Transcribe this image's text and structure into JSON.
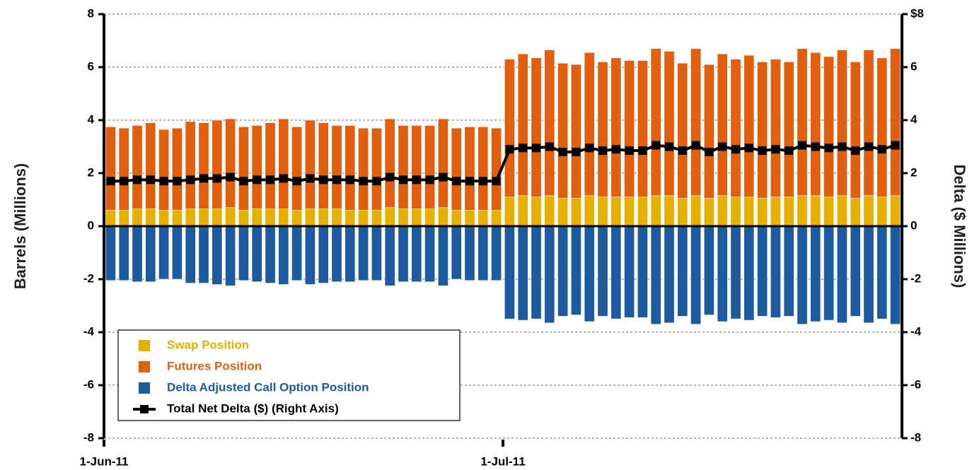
{
  "chart_data": {
    "type": "bar",
    "stacked": true,
    "y_label": "Barrels (Millions)",
    "y2_label": "Delta ($ Millions)",
    "categories": [
      "1-Jun-11",
      null,
      null,
      null,
      null,
      null,
      null,
      null,
      null,
      null,
      null,
      null,
      null,
      null,
      null,
      null,
      null,
      null,
      null,
      null,
      null,
      null,
      null,
      null,
      null,
      null,
      null,
      null,
      null,
      null,
      "1-Jul-11",
      null,
      null,
      null,
      null,
      null,
      null,
      null,
      null,
      null,
      null,
      null,
      null,
      null,
      null,
      null,
      null,
      null,
      null,
      null,
      null,
      null,
      null,
      null,
      null,
      null,
      null,
      null,
      null,
      null
    ],
    "ylim": [
      -8,
      8
    ],
    "yticks": [
      -8,
      -6,
      -4,
      -2,
      0,
      2,
      4,
      6,
      8
    ],
    "y2lim": [
      -8,
      8
    ],
    "y2ticks": [
      -8,
      -6,
      -4,
      -2,
      0,
      2,
      4,
      6,
      {
        "value": 8,
        "label": "$8"
      }
    ],
    "series": [
      {
        "name": "Swap Position",
        "type": "bar",
        "color": "#e6b000",
        "values": [
          0.6,
          0.6,
          0.65,
          0.65,
          0.6,
          0.6,
          0.65,
          0.65,
          0.65,
          0.7,
          0.6,
          0.65,
          0.65,
          0.65,
          0.6,
          0.65,
          0.65,
          0.65,
          0.6,
          0.6,
          0.6,
          0.7,
          0.65,
          0.65,
          0.65,
          0.7,
          0.6,
          0.6,
          0.6,
          0.6,
          1.1,
          1.15,
          1.1,
          1.15,
          1.05,
          1.05,
          1.15,
          1.1,
          1.1,
          1.1,
          1.1,
          1.15,
          1.15,
          1.05,
          1.15,
          1.05,
          1.15,
          1.1,
          1.1,
          1.05,
          1.1,
          1.1,
          1.15,
          1.15,
          1.1,
          1.15,
          1.05,
          1.15,
          1.1,
          1.15
        ]
      },
      {
        "name": "Futures Position",
        "type": "bar",
        "color": "#e0600f",
        "values": [
          3.15,
          3.1,
          3.15,
          3.25,
          3.05,
          3.1,
          3.3,
          3.25,
          3.35,
          3.35,
          3.15,
          3.15,
          3.25,
          3.4,
          3.15,
          3.35,
          3.25,
          3.15,
          3.2,
          3.1,
          3.1,
          3.35,
          3.15,
          3.15,
          3.15,
          3.35,
          3.1,
          3.15,
          3.15,
          3.1,
          5.2,
          5.35,
          5.25,
          5.5,
          5.1,
          5.05,
          5.4,
          5.1,
          5.25,
          5.15,
          5.15,
          5.55,
          5.45,
          5.1,
          5.55,
          5.05,
          5.35,
          5.2,
          5.35,
          5.15,
          5.2,
          5.1,
          5.55,
          5.4,
          5.3,
          5.5,
          5.15,
          5.5,
          5.25,
          5.55
        ]
      },
      {
        "name": "Delta Adjusted Call Option Position",
        "type": "bar",
        "color": "#1d5aa0",
        "values": [
          -2.05,
          -2.05,
          -2.1,
          -2.1,
          -2.0,
          -2.0,
          -2.15,
          -2.15,
          -2.2,
          -2.25,
          -2.05,
          -2.1,
          -2.15,
          -2.2,
          -2.05,
          -2.2,
          -2.15,
          -2.1,
          -2.1,
          -2.05,
          -2.05,
          -2.25,
          -2.1,
          -2.1,
          -2.1,
          -2.25,
          -2.0,
          -2.05,
          -2.05,
          -2.05,
          -3.5,
          -3.55,
          -3.5,
          -3.65,
          -3.4,
          -3.35,
          -3.6,
          -3.4,
          -3.5,
          -3.45,
          -3.45,
          -3.7,
          -3.65,
          -3.4,
          -3.7,
          -3.35,
          -3.6,
          -3.5,
          -3.55,
          -3.4,
          -3.45,
          -3.4,
          -3.7,
          -3.6,
          -3.55,
          -3.65,
          -3.4,
          -3.65,
          -3.5,
          -3.7
        ]
      },
      {
        "name": "Total Net Delta ($) (Right Axis)",
        "type": "line",
        "axis": "y2",
        "color": "#000000",
        "values": [
          1.7,
          1.7,
          1.75,
          1.75,
          1.7,
          1.7,
          1.75,
          1.8,
          1.8,
          1.85,
          1.7,
          1.75,
          1.75,
          1.8,
          1.7,
          1.8,
          1.75,
          1.75,
          1.75,
          1.7,
          1.7,
          1.85,
          1.75,
          1.75,
          1.75,
          1.85,
          1.7,
          1.7,
          1.7,
          1.7,
          2.9,
          2.95,
          2.95,
          3.0,
          2.8,
          2.8,
          2.95,
          2.85,
          2.9,
          2.85,
          2.85,
          3.05,
          3.0,
          2.85,
          3.05,
          2.8,
          3.0,
          2.9,
          2.95,
          2.85,
          2.9,
          2.85,
          3.05,
          3.0,
          2.95,
          3.0,
          2.85,
          3.0,
          2.9,
          3.05
        ]
      }
    ],
    "legend": "lower-left"
  }
}
